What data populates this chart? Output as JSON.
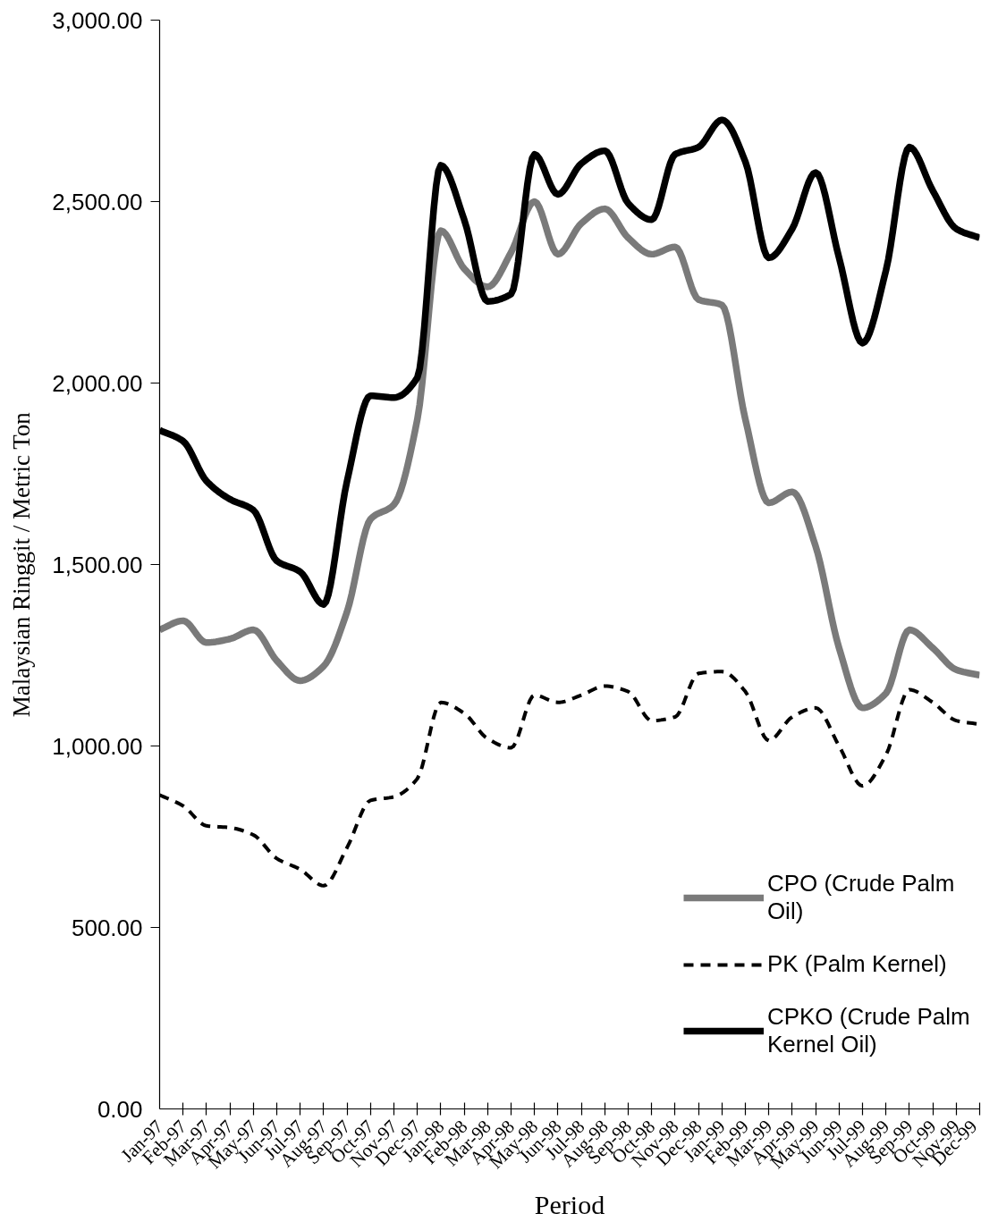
{
  "chart_data": {
    "type": "line",
    "xlabel": "Period",
    "ylabel": "Malaysian Ringgit / Metric Ton",
    "categories": [
      "Jan-97",
      "Feb-97",
      "Mar-97",
      "Apr-97",
      "May-97",
      "Jun-97",
      "Jul-97",
      "Aug-97",
      "Sep-97",
      "Oct-97",
      "Nov-97",
      "Dec-97",
      "Jan-98",
      "Feb-98",
      "Mar-98",
      "Apr-98",
      "May-98",
      "Jun-98",
      "Jul-98",
      "Aug-98",
      "Sep-98",
      "Oct-98",
      "Nov-98",
      "Dec-98",
      "Jan-99",
      "Feb-99",
      "Mar-99",
      "Apr-99",
      "May-99",
      "Jun-99",
      "Jul-99",
      "Aug-99",
      "Sep-99",
      "Oct-99",
      "Nov-99",
      "Dec-99"
    ],
    "ylim": [
      0,
      3000
    ],
    "yticks": [
      {
        "value": 0,
        "label": "0.00"
      },
      {
        "value": 500,
        "label": "500.00"
      },
      {
        "value": 1000,
        "label": "1,000.00"
      },
      {
        "value": 1500,
        "label": "1,500.00"
      },
      {
        "value": 2000,
        "label": "2,000.00"
      },
      {
        "value": 2500,
        "label": "2,500.00"
      },
      {
        "value": 3000,
        "label": "3,000.00"
      }
    ],
    "grid": false,
    "legend": "bottom right",
    "series": [
      {
        "name": "CPO (Crude Palm Oil)",
        "color": "#7a7a7a",
        "line_style": "solid",
        "values": [
          1320,
          1345,
          1285,
          1295,
          1320,
          1235,
          1180,
          1220,
          1370,
          1625,
          1665,
          1900,
          2420,
          2315,
          2265,
          2360,
          2500,
          2355,
          2440,
          2480,
          2400,
          2355,
          2375,
          2230,
          2215,
          1900,
          1670,
          1700,
          1550,
          1270,
          1105,
          1145,
          1320,
          1270,
          1210,
          1195
        ]
      },
      {
        "name": "PK (Palm Kernel)",
        "color": "#000000",
        "line_style": "dashed",
        "values": [
          865,
          835,
          780,
          775,
          755,
          690,
          660,
          615,
          720,
          850,
          860,
          910,
          1120,
          1090,
          1020,
          995,
          1140,
          1120,
          1140,
          1165,
          1150,
          1070,
          1080,
          1200,
          1205,
          1150,
          1015,
          1080,
          1105,
          1000,
          890,
          975,
          1155,
          1120,
          1070,
          1060
        ]
      },
      {
        "name": "CPKO (Crude Palm Kernel Oil)",
        "color": "#000000",
        "line_style": "solid",
        "values": [
          1870,
          1840,
          1730,
          1680,
          1650,
          1510,
          1480,
          1390,
          1730,
          1965,
          1960,
          2015,
          2600,
          2450,
          2225,
          2245,
          2630,
          2520,
          2605,
          2640,
          2495,
          2450,
          2630,
          2650,
          2725,
          2610,
          2345,
          2425,
          2580,
          2345,
          2110,
          2310,
          2650,
          2530,
          2425,
          2400
        ]
      }
    ]
  }
}
